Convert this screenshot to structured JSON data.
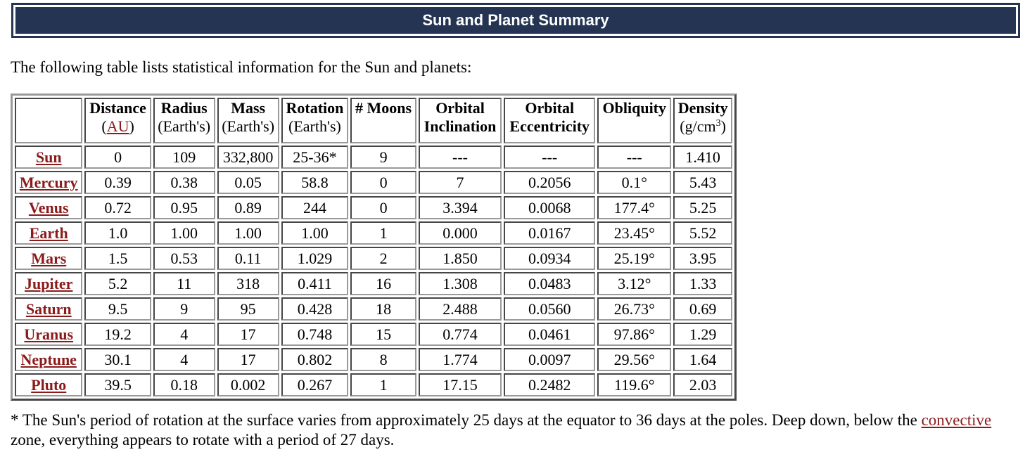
{
  "banner": {
    "title": "Sun and Planet Summary"
  },
  "intro": "The following table lists statistical information for the Sun and planets:",
  "table": {
    "headers": [
      {
        "line1": "Distance",
        "open": "(",
        "link": "AU",
        "close": ")"
      },
      {
        "line1": "Radius",
        "line2": "(Earth's)"
      },
      {
        "line1": "Mass",
        "line2": "(Earth's)"
      },
      {
        "line1": "Rotation",
        "line2": "(Earth's)"
      },
      {
        "line1": "# Moons"
      },
      {
        "line1": "Orbital",
        "line2": "Inclination"
      },
      {
        "line1": "Orbital",
        "line2": "Eccentricity"
      },
      {
        "line1": "Obliquity"
      },
      {
        "line1": "Density",
        "unit_pre": "(g/cm",
        "unit_sup": "3",
        "unit_post": ")"
      }
    ],
    "rows": [
      {
        "name": "Sun",
        "cells": [
          "0",
          "109",
          "332,800",
          "25-36*",
          "9",
          "---",
          "---",
          "---",
          "1.410"
        ]
      },
      {
        "name": "Mercury",
        "cells": [
          "0.39",
          "0.38",
          "0.05",
          "58.8",
          "0",
          "7",
          "0.2056",
          "0.1°",
          "5.43"
        ]
      },
      {
        "name": "Venus",
        "cells": [
          "0.72",
          "0.95",
          "0.89",
          "244",
          "0",
          "3.394",
          "0.0068",
          "177.4°",
          "5.25"
        ]
      },
      {
        "name": "Earth",
        "cells": [
          "1.0",
          "1.00",
          "1.00",
          "1.00",
          "1",
          "0.000",
          "0.0167",
          "23.45°",
          "5.52"
        ]
      },
      {
        "name": "Mars",
        "cells": [
          "1.5",
          "0.53",
          "0.11",
          "1.029",
          "2",
          "1.850",
          "0.0934",
          "25.19°",
          "3.95"
        ]
      },
      {
        "name": "Jupiter",
        "cells": [
          "5.2",
          "11",
          "318",
          "0.411",
          "16",
          "1.308",
          "0.0483",
          "3.12°",
          "1.33"
        ]
      },
      {
        "name": "Saturn",
        "cells": [
          "9.5",
          "9",
          "95",
          "0.428",
          "18",
          "2.488",
          "0.0560",
          "26.73°",
          "0.69"
        ]
      },
      {
        "name": "Uranus",
        "cells": [
          "19.2",
          "4",
          "17",
          "0.748",
          "15",
          "0.774",
          "0.0461",
          "97.86°",
          "1.29"
        ]
      },
      {
        "name": "Neptune",
        "cells": [
          "30.1",
          "4",
          "17",
          "0.802",
          "8",
          "1.774",
          "0.0097",
          "29.56°",
          "1.64"
        ]
      },
      {
        "name": "Pluto",
        "cells": [
          "39.5",
          "0.18",
          "0.002",
          "0.267",
          "1",
          "17.15",
          "0.2482",
          "119.6°",
          "2.03"
        ]
      }
    ]
  },
  "footnote": {
    "part1": "* The Sun's period of rotation at the surface varies from approximately 25 days at the equator to 36 days at the poles. Deep down, below the ",
    "link": "convective",
    "part2": " zone, everything appears to rotate with a period of 27 days."
  },
  "colors": {
    "banner_bg": "#243452",
    "link": "#8b1a1a"
  }
}
